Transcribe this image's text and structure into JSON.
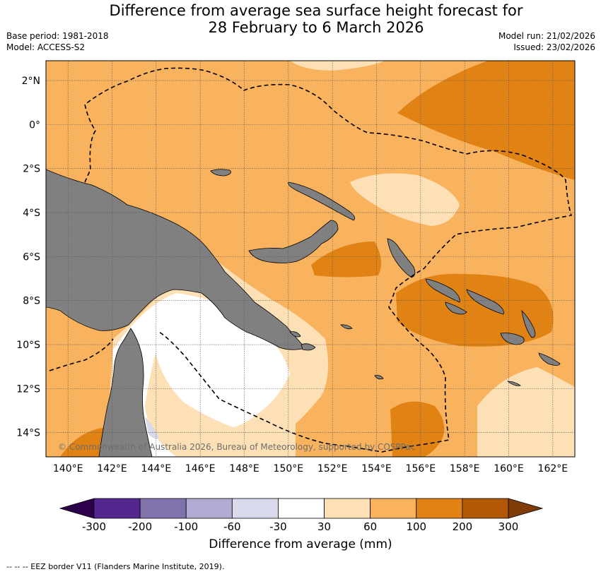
{
  "title": {
    "line1": "Difference from average sea surface height forecast for",
    "line2": "28 February to 6 March 2026"
  },
  "meta": {
    "base_period": "Base period: 1981-2018",
    "model": "Model: ACCESS-S2",
    "model_run": "Model run: 21/02/2026",
    "issued": "Issued: 23/02/2026"
  },
  "map": {
    "lat_labels": [
      "2°N",
      "0°",
      "2°S",
      "4°S",
      "6°S",
      "8°S",
      "10°S",
      "12°S",
      "14°S"
    ],
    "lon_labels": [
      "140°E",
      "142°E",
      "144°E",
      "146°E",
      "148°E",
      "150°E",
      "152°E",
      "154°E",
      "156°E",
      "158°E",
      "160°E",
      "162°E"
    ],
    "copyright": "© Commonwealth of Australia 2026, Bureau of Meteorology, supported by COSPPac"
  },
  "colorbar": {
    "ticks": [
      "-300",
      "-200",
      "-100",
      "-60",
      "-30",
      "30",
      "60",
      "100",
      "200",
      "300"
    ],
    "colors": [
      "#54278f",
      "#8073ac",
      "#b2abd2",
      "#d8daeb",
      "#ffffff",
      "#fee0b6",
      "#f9b35e",
      "#e08214",
      "#b35806"
    ],
    "low_extend_color": "#2d004b",
    "high_extend_color": "#7f3b08",
    "label": "Difference from average (mm)"
  },
  "footer": "--  --  -- EEZ border V11 (Flanders Marine Institute, 2019)."
}
